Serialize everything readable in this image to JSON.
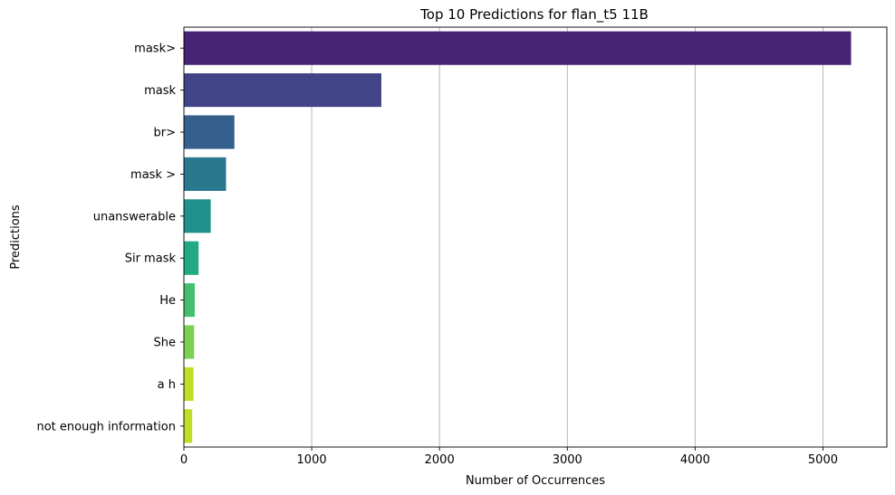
{
  "chart_data": {
    "type": "bar",
    "orientation": "horizontal",
    "title": "Top 10 Predictions for flan_t5 11B",
    "xlabel": "Number of Occurrences",
    "ylabel": "Predictions",
    "categories": [
      "mask>",
      "mask",
      "br>",
      "mask >",
      "unanswerable",
      "Sir mask",
      "He",
      "She",
      "a h",
      "not enough information"
    ],
    "values": [
      5220,
      1545,
      395,
      330,
      210,
      115,
      85,
      80,
      75,
      65
    ],
    "colors": [
      "#482475",
      "#414487",
      "#355f8d",
      "#2a788e",
      "#21918c",
      "#22a884",
      "#44bf70",
      "#7ad151",
      "#bddf26",
      "#bddf26"
    ],
    "xlim": [
      0,
      5500
    ],
    "xticks": [
      0,
      1000,
      2000,
      3000,
      4000,
      5000
    ],
    "xtick_labels": [
      "0",
      "1000",
      "2000",
      "3000",
      "4000",
      "5000"
    ],
    "grid": "x"
  }
}
